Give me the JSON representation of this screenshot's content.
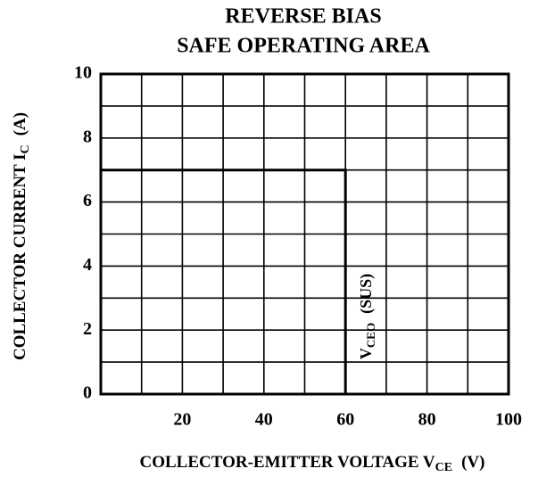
{
  "chart_data": {
    "type": "line",
    "title": [
      "REVERSE BIAS",
      "SAFE OPERATING AREA"
    ],
    "xlabel": {
      "main": "COLLECTOR-EMITTER VOLTAGE V",
      "sub": "CE",
      "unit": "(V)"
    },
    "ylabel": {
      "main": "COLLECTOR CURRENT I",
      "sub": "C",
      "unit": "(A)"
    },
    "annotation": {
      "main": "V",
      "sub": "CEO",
      "rest": "(SUS)"
    },
    "series": [
      {
        "color": "#000000",
        "x": [
          0,
          60,
          60
        ],
        "values": [
          7,
          7,
          0
        ]
      }
    ],
    "xlim": [
      0,
      100
    ],
    "ylim": [
      0,
      10
    ],
    "xticks": [
      20,
      40,
      60,
      80,
      100
    ],
    "yticks": [
      0,
      2,
      4,
      6,
      8,
      10
    ],
    "xminor_ticks": [
      10,
      30,
      50,
      70,
      90
    ],
    "yminor_ticks": [
      1,
      3,
      5,
      7,
      9
    ],
    "grid": true
  }
}
